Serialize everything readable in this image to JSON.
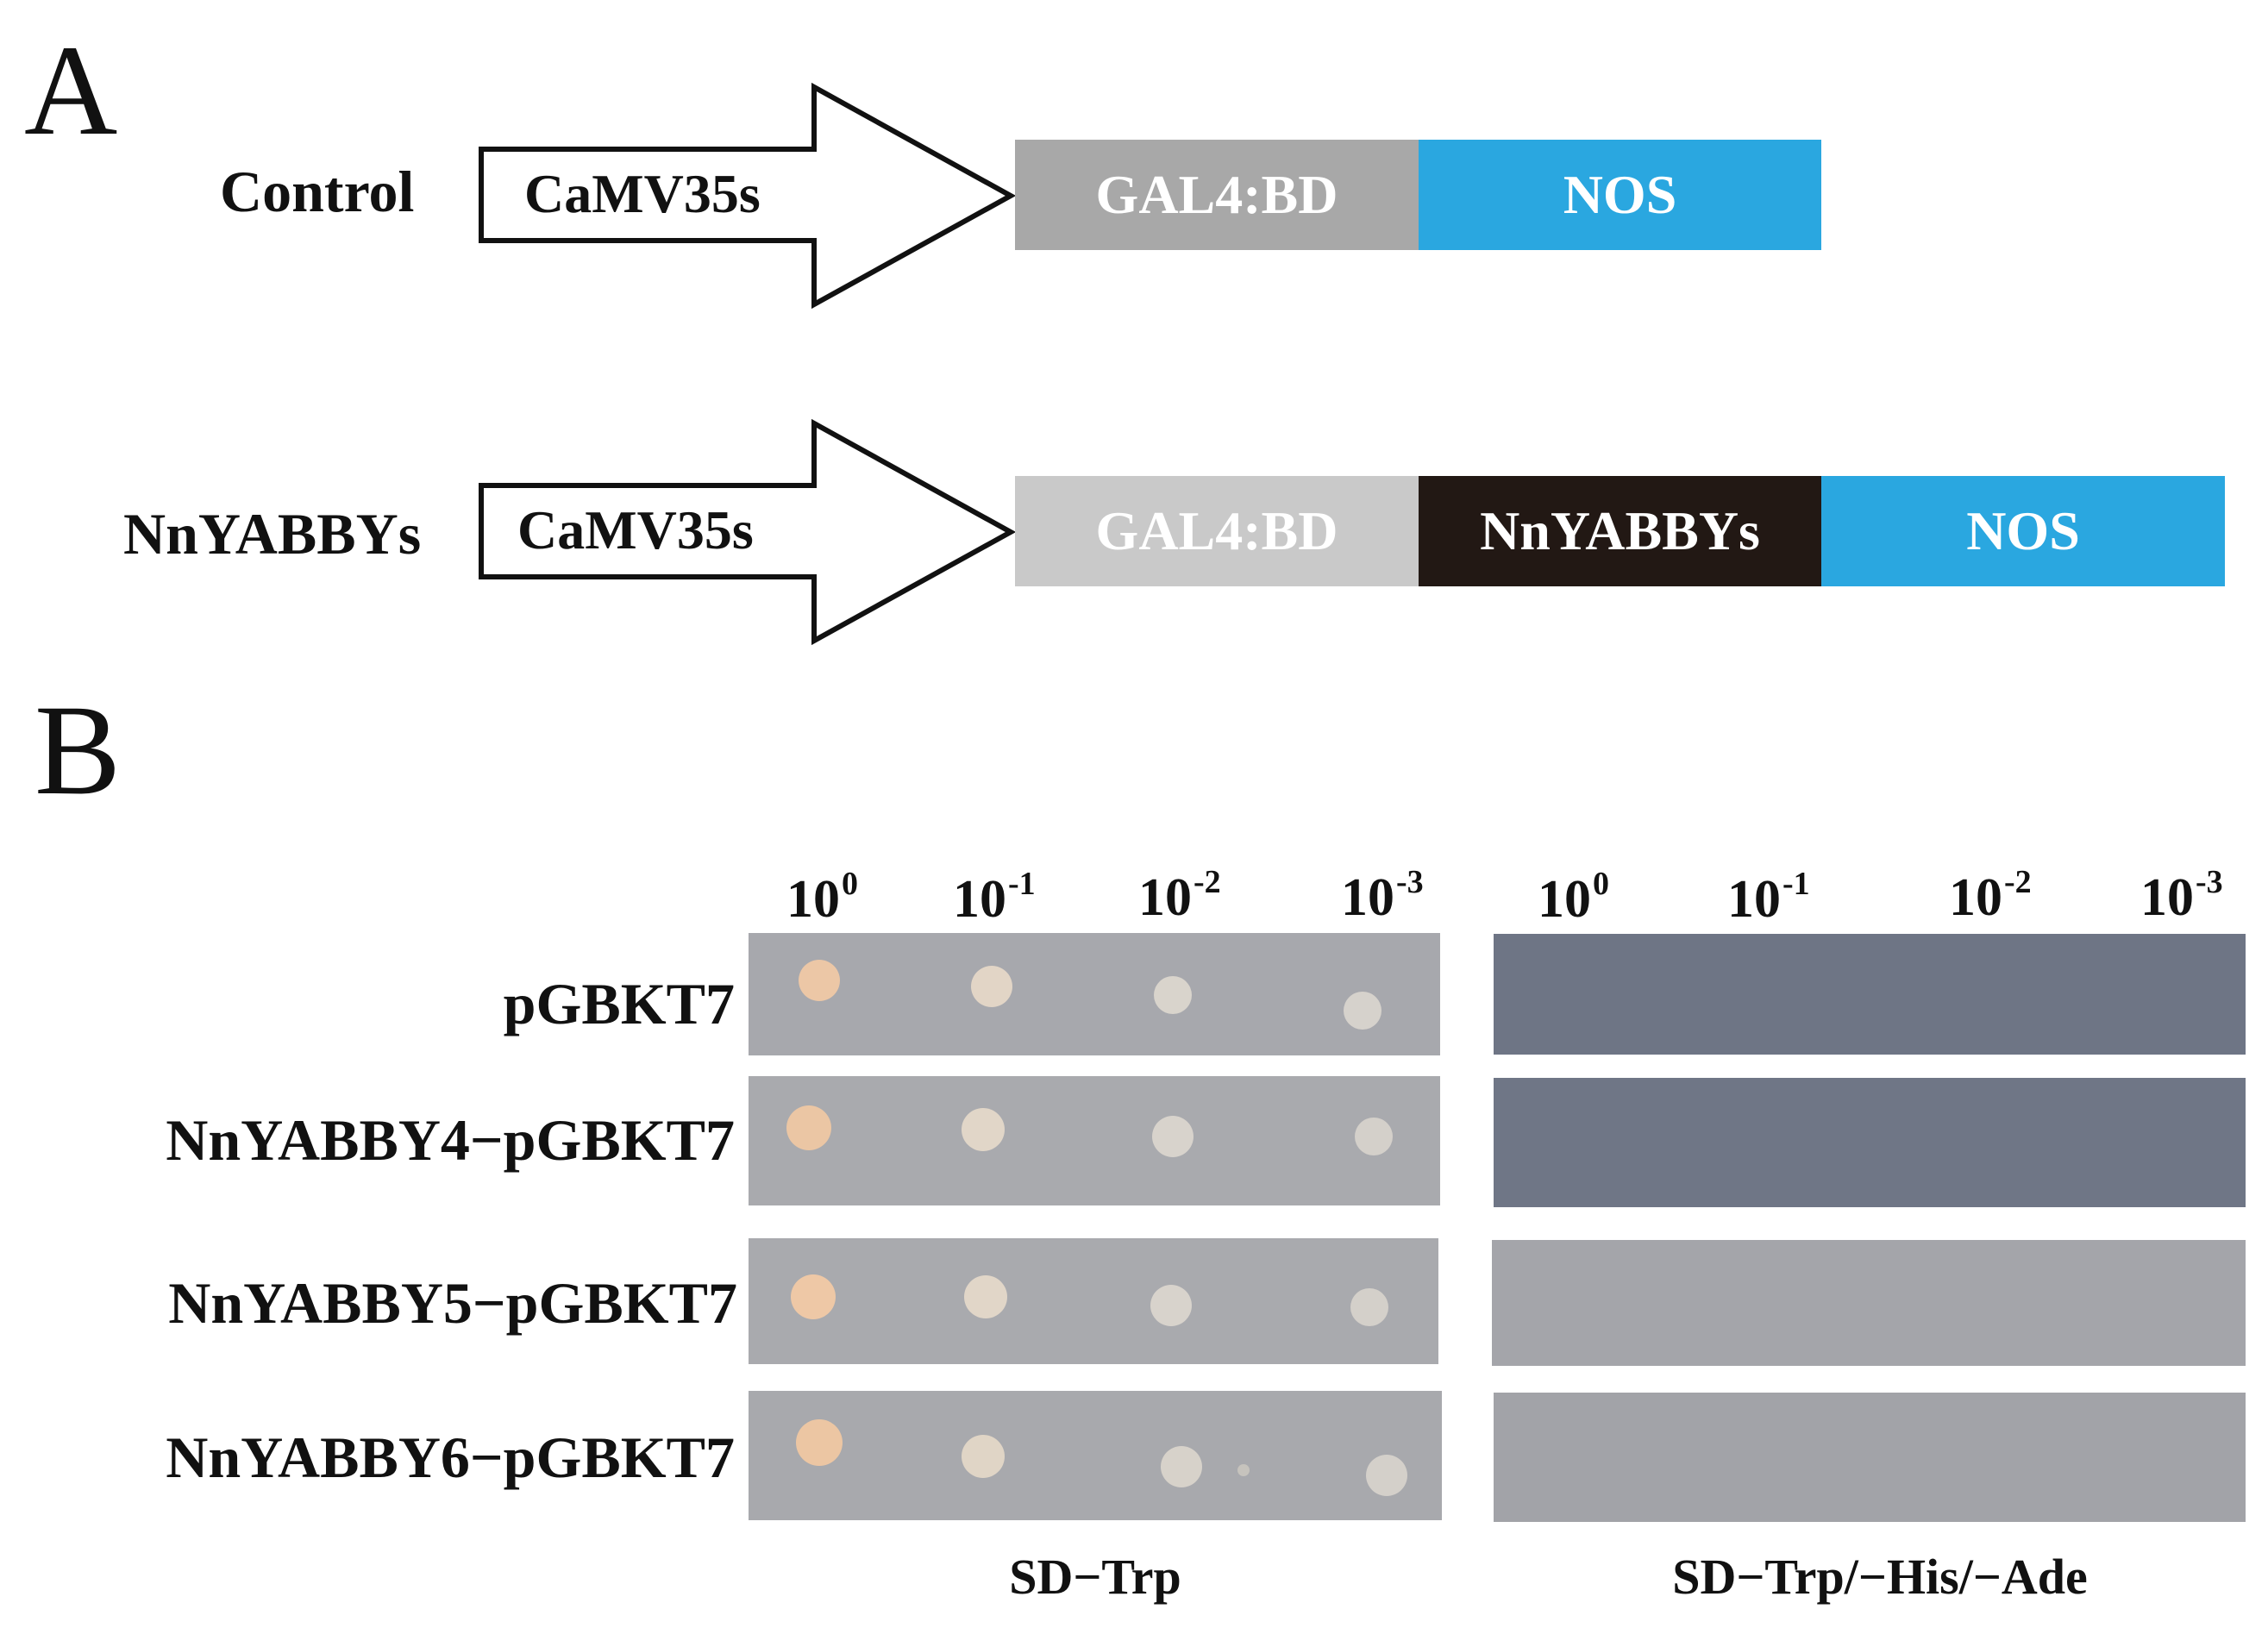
{
  "panels": {
    "a": "A",
    "b": "B"
  },
  "constructs": [
    {
      "label": "Control",
      "promoter": "CaMV35s",
      "segments": [
        {
          "text": "GAL4:BD",
          "color": "#a8a8a8"
        },
        {
          "text": "NOS",
          "color": "#2aa7e0"
        }
      ]
    },
    {
      "label": "NnYABBYs",
      "promoter": "CaMV35s",
      "segments": [
        {
          "text": "GAL4:BD",
          "color": "#c9c9c9"
        },
        {
          "text": "NnYABBYs",
          "color": "#221814"
        },
        {
          "text": "NOS",
          "color": "#2aa7e0"
        }
      ]
    }
  ],
  "dilutions": [
    {
      "base": "10",
      "exp": "0"
    },
    {
      "base": "10",
      "exp": "-1"
    },
    {
      "base": "10",
      "exp": "-2"
    },
    {
      "base": "10",
      "exp": "-3"
    }
  ],
  "strains": [
    "pGBKT7",
    "NnYABBY4−pGBKT7",
    "NnYABBY5−pGBKT7",
    "NnYABBY6−pGBKT7"
  ],
  "media": [
    "SD−Trp",
    "SD−Trp/−His/−Ade"
  ],
  "colors": {
    "plate_sd_trp": "#a7a8ad",
    "plate_sd_qdo_dark": "#6e7585",
    "plate_sd_qdo_light": "#a4a5aa",
    "colony_large": "#ecc7a6",
    "colony_small": "#d9d4cc"
  }
}
